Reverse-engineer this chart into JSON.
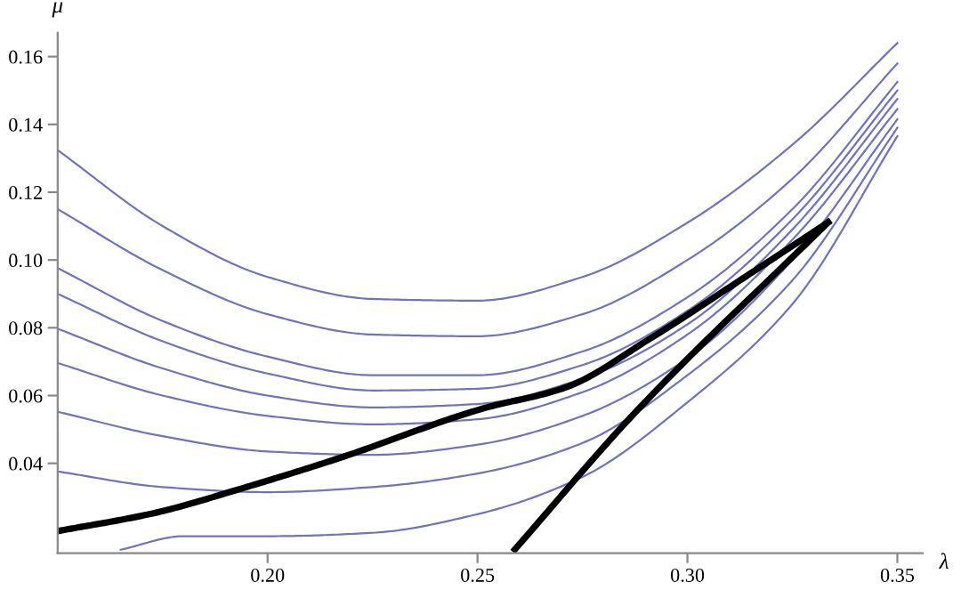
{
  "chart_data": {
    "type": "line",
    "xlabel": "λ",
    "ylabel": "μ",
    "xlim": [
      0.15,
      0.356
    ],
    "ylim": [
      0.0135,
      0.167
    ],
    "xticks": [
      {
        "value": 0.2,
        "label": "0.20"
      },
      {
        "value": 0.25,
        "label": "0.25"
      },
      {
        "value": 0.3,
        "label": "0.30"
      },
      {
        "value": 0.35,
        "label": "0.35"
      }
    ],
    "yticks": [
      {
        "value": 0.04,
        "label": "0.04"
      },
      {
        "value": 0.06,
        "label": "0.06"
      },
      {
        "value": 0.08,
        "label": "0.08"
      },
      {
        "value": 0.1,
        "label": "0.10"
      },
      {
        "value": 0.12,
        "label": "0.12"
      },
      {
        "value": 0.14,
        "label": "0.14"
      },
      {
        "value": 0.16,
        "label": "0.16"
      }
    ],
    "grid": false,
    "legend": false,
    "marker": "none",
    "line_style": "solid",
    "x": [
      0.15,
      0.175,
      0.2,
      0.225,
      0.25,
      0.275,
      0.3,
      0.325,
      0.35
    ],
    "series": [
      {
        "color": "#7272bf",
        "values": [
          0.1324,
          0.11,
          0.095,
          0.0885,
          0.088,
          0.095,
          0.111,
          0.134,
          0.164
        ]
      },
      {
        "color": "#7272bf",
        "values": [
          0.115,
          0.097,
          0.084,
          0.078,
          0.0775,
          0.084,
          0.1,
          0.124,
          0.158
        ]
      },
      {
        "color": "#7272bf",
        "values": [
          0.0976,
          0.082,
          0.0715,
          0.066,
          0.066,
          0.073,
          0.089,
          0.115,
          0.1525
        ]
      },
      {
        "color": "#7272bf",
        "values": [
          0.09,
          0.076,
          0.0665,
          0.0615,
          0.062,
          0.069,
          0.085,
          0.112,
          0.15
        ]
      },
      {
        "color": "#7272bf",
        "values": [
          0.0797,
          0.068,
          0.06,
          0.0565,
          0.0575,
          0.065,
          0.081,
          0.109,
          0.1475
        ]
      },
      {
        "color": "#7272bf",
        "values": [
          0.0696,
          0.06,
          0.054,
          0.0515,
          0.053,
          0.061,
          0.078,
          0.106,
          0.1445
        ]
      },
      {
        "color": "#7272bf",
        "values": [
          0.0552,
          0.048,
          0.0435,
          0.0425,
          0.0455,
          0.054,
          0.071,
          0.1,
          0.1415
        ]
      },
      {
        "color": "#7272bf",
        "values": [
          0.0376,
          0.033,
          0.0315,
          0.033,
          0.037,
          0.046,
          0.066,
          0.094,
          0.139
        ]
      },
      {
        "color": "#7272bf",
        "x": [
          0.165,
          0.18,
          0.2,
          0.225,
          0.25,
          0.275,
          0.3,
          0.325,
          0.35
        ],
        "values": [
          0.0145,
          0.0185,
          0.0185,
          0.0195,
          0.025,
          0.036,
          0.058,
          0.087,
          0.1365
        ]
      },
      {
        "color": "#000000",
        "x": [
          0.15,
          0.1729,
          0.1944,
          0.2172,
          0.2508,
          0.271,
          0.2911,
          0.314,
          0.3335
        ],
        "values": [
          0.02,
          0.0253,
          0.0328,
          0.0416,
          0.056,
          0.0624,
          0.0768,
          0.0952,
          0.1111
        ]
      },
      {
        "color": "#000000",
        "x": [
          0.2589,
          0.2871,
          0.3335
        ],
        "values": [
          0.0146,
          0.0544,
          0.1111
        ]
      }
    ]
  }
}
